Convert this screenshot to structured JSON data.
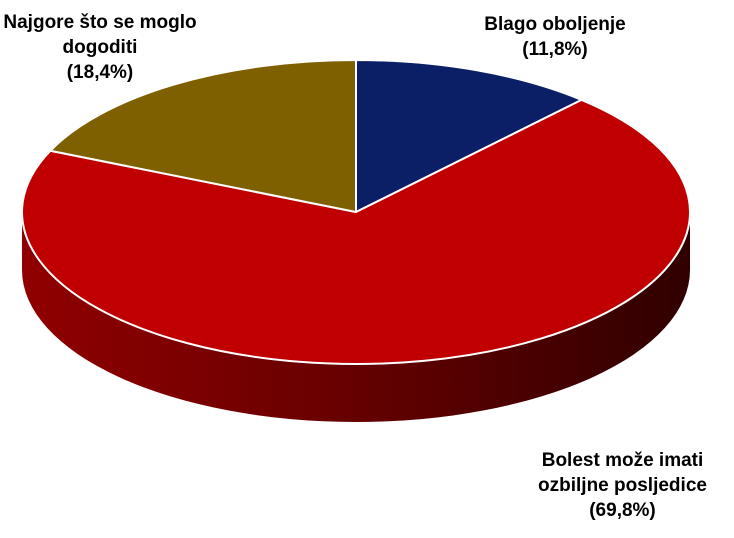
{
  "chart_data": {
    "type": "pie",
    "categories": [
      "Blago oboljenje",
      "Bolest može imati ozbiljne posljedice",
      "Najgore što se moglo dogoditi"
    ],
    "values": [
      11.8,
      69.8,
      18.4
    ],
    "value_labels": [
      "(11,8%)",
      "(69,8%)",
      "(18,4%)"
    ],
    "colors": [
      "#0b1f66",
      "#c00000",
      "#7f6000"
    ]
  }
}
